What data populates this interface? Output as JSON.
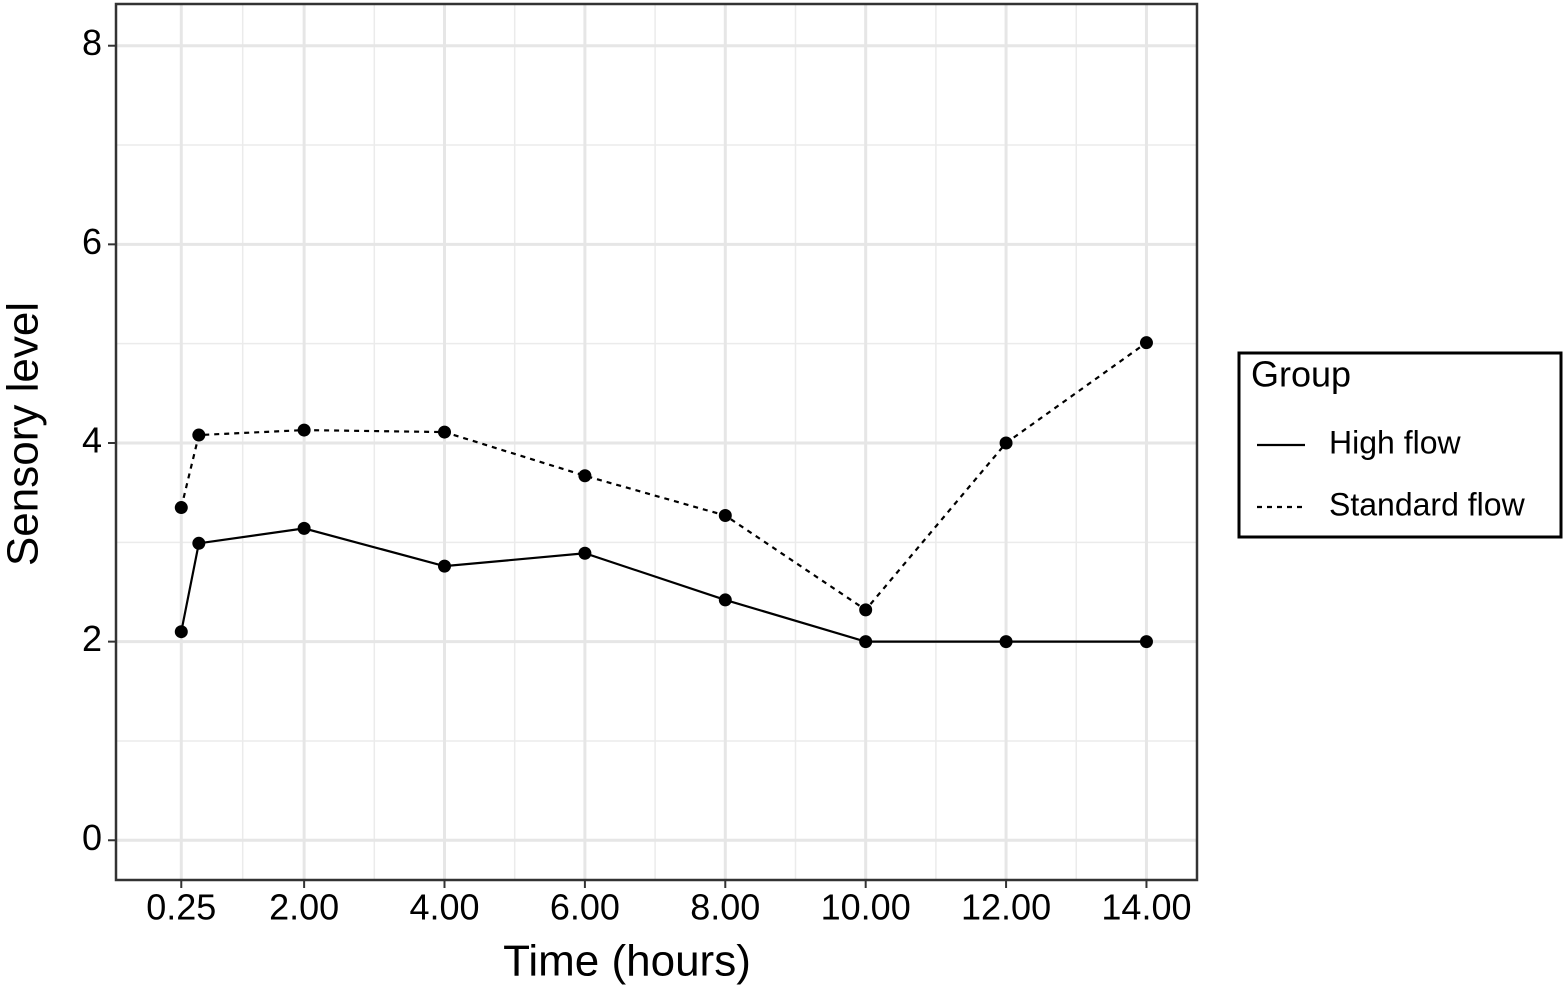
{
  "chart_data": {
    "type": "line",
    "x_label": "Time (hours)",
    "y_label": "Sensory level",
    "x": [
      0.25,
      0.5,
      2,
      4,
      6,
      8,
      10,
      12,
      14
    ],
    "series": [
      {
        "name": "High flow",
        "color": "#000000",
        "linestyle": "solid",
        "values": [
          2.1,
          2.99,
          3.14,
          2.76,
          2.89,
          2.42,
          2.0,
          2.0,
          2.0
        ]
      },
      {
        "name": "Standard flow",
        "color": "#000000",
        "linestyle": "dashed",
        "values": [
          3.35,
          4.08,
          4.13,
          4.11,
          3.67,
          3.27,
          2.32,
          4.0,
          5.01
        ]
      }
    ],
    "xlim": [
      -0.68,
      14.72
    ],
    "xticks": [
      {
        "value": 0.25,
        "label": "0.25"
      },
      {
        "value": 2,
        "label": "2.00"
      },
      {
        "value": 4,
        "label": "4.00"
      },
      {
        "value": 6,
        "label": "6.00"
      },
      {
        "value": 8,
        "label": "8.00"
      },
      {
        "value": 10,
        "label": "10.00"
      },
      {
        "value": 12,
        "label": "12.00"
      },
      {
        "value": 14,
        "label": "14.00"
      }
    ],
    "ylim": [
      -0.4,
      8.42
    ],
    "yticks": [
      0,
      2,
      4,
      6,
      8
    ],
    "grid": true,
    "legend_title": "Group",
    "legend": "right"
  }
}
